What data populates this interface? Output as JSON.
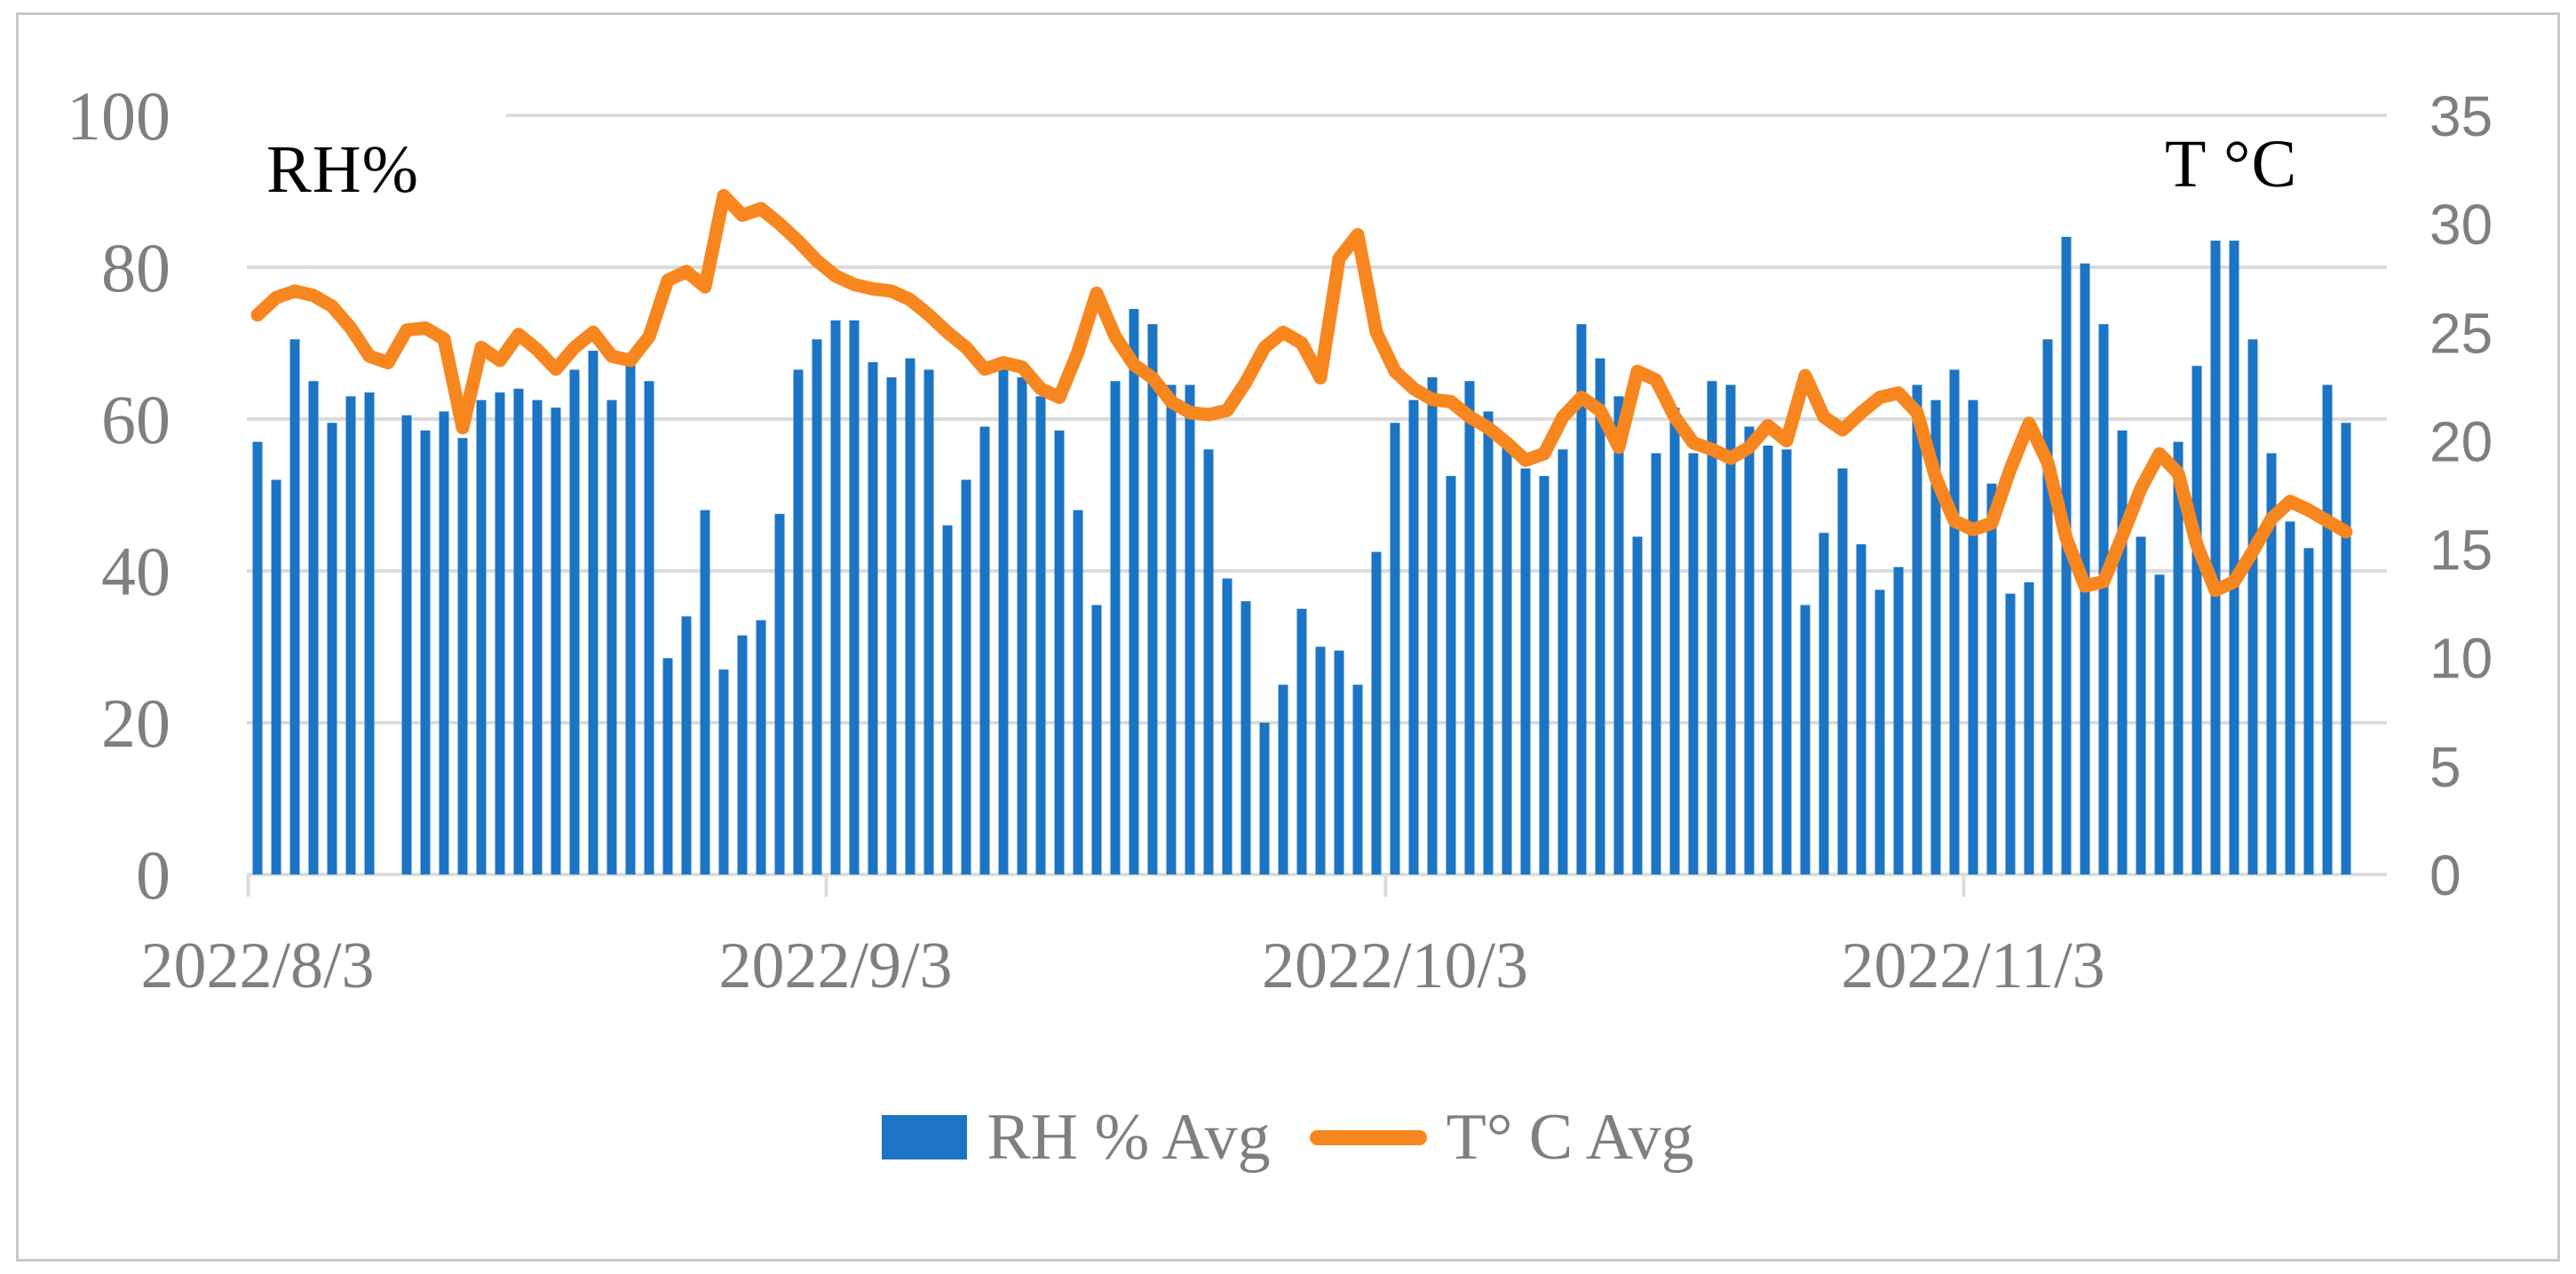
{
  "figure": {
    "border_color": "#c9c9c9",
    "background": "#ffffff"
  },
  "colors": {
    "bar_blue": "#1c74c5",
    "line_orange": "#f8861f",
    "gridline": "#dbdbdb",
    "tick_text": "#7f7f7f",
    "title_text": "#000000"
  },
  "chart_data": {
    "type": "bar",
    "subtype": "combo-bar-line-dual-axis",
    "title_left": "RH%",
    "title_right": "T °C",
    "grid": "horizontal-on",
    "legend_position": "bottom-center",
    "legend": [
      {
        "label": "RH % Avg",
        "marker": "bar",
        "color": "#1c74c5"
      },
      {
        "label": "T° C Avg",
        "marker": "line",
        "color": "#f8861f"
      }
    ],
    "left_axis": {
      "label": "RH%",
      "ticks": [
        0,
        20,
        40,
        60,
        80,
        100
      ],
      "range": [
        0,
        100
      ]
    },
    "right_axis": {
      "label": "T °C",
      "ticks": [
        0,
        5,
        10,
        15,
        20,
        25,
        30,
        35
      ],
      "range": [
        0,
        35
      ]
    },
    "x_axis": {
      "tick_labels": [
        "2022/8/3",
        "2022/9/3",
        "2022/10/3",
        "2022/11/3"
      ],
      "tick_day_index": [
        0,
        31,
        61,
        92
      ],
      "n_days": 113,
      "note_gap_day_index": 7
    },
    "series": [
      {
        "name": "RH % Avg",
        "type": "bar",
        "axis": "left",
        "color": "#1c74c5",
        "values": [
          57,
          52,
          70.5,
          65,
          59.5,
          63,
          63.5,
          null,
          60.5,
          58.5,
          61,
          57.5,
          62.5,
          63.5,
          64,
          62.5,
          61.5,
          66.5,
          69,
          62.5,
          68,
          65,
          28.5,
          34,
          48,
          27,
          31.5,
          33.5,
          47.5,
          66.5,
          70.5,
          73,
          73,
          67.5,
          65.5,
          68,
          66.5,
          46,
          52,
          59,
          67.5,
          65.5,
          63,
          58.5,
          48,
          35.5,
          65,
          74.5,
          72.5,
          64.5,
          64.5,
          56,
          39,
          36,
          20,
          25,
          35,
          30,
          29.5,
          25,
          42.5,
          59.5,
          62.5,
          65.5,
          52.5,
          65,
          61,
          57.5,
          53.5,
          52.5,
          56,
          72.5,
          68,
          63,
          44.5,
          55.5,
          61.5,
          55.5,
          65,
          64.5,
          59,
          56.5,
          56,
          35.5,
          45,
          53.5,
          43.5,
          37.5,
          40.5,
          64.5,
          62.5,
          66.5,
          62.5,
          51.5,
          37,
          38.5,
          70.5,
          84,
          80.5,
          72.5,
          58.5,
          44.5,
          39.5,
          57,
          67,
          83.5,
          83.5,
          70.5,
          55.5,
          46.5,
          43,
          64.5,
          59.5
        ]
      },
      {
        "name": "T° C Avg",
        "type": "line",
        "axis": "right",
        "color": "#f8861f",
        "values": [
          25.8,
          26.6,
          26.9,
          26.7,
          26.2,
          25.2,
          23.9,
          23.6,
          25.1,
          25.2,
          24.7,
          20.6,
          24.3,
          23.7,
          24.9,
          24.2,
          23.3,
          24.3,
          25.0,
          23.9,
          23.7,
          24.8,
          27.4,
          27.8,
          27.1,
          31.3,
          30.4,
          30.7,
          30.0,
          29.2,
          28.3,
          27.6,
          27.2,
          27.0,
          26.9,
          26.5,
          25.8,
          25.0,
          24.3,
          23.3,
          23.6,
          23.4,
          22.4,
          22.0,
          24.1,
          26.8,
          24.8,
          23.5,
          22.9,
          21.8,
          21.3,
          21.2,
          21.4,
          22.7,
          24.3,
          25.0,
          24.5,
          22.9,
          28.4,
          29.5,
          25.0,
          23.2,
          22.4,
          21.9,
          21.8,
          21.1,
          20.6,
          19.9,
          19.1,
          19.4,
          21.1,
          22.0,
          21.4,
          19.7,
          23.2,
          22.8,
          21.1,
          19.9,
          19.6,
          19.2,
          19.7,
          20.7,
          20.0,
          23.0,
          21.1,
          20.5,
          21.3,
          22.0,
          22.2,
          21.3,
          18.3,
          16.3,
          15.9,
          16.2,
          18.7,
          20.8,
          19.0,
          15.5,
          13.3,
          13.5,
          15.6,
          17.8,
          19.4,
          18.5,
          15.2,
          13.1,
          13.5,
          14.9,
          16.4,
          17.2,
          16.8,
          16.3,
          15.8
        ]
      }
    ]
  }
}
